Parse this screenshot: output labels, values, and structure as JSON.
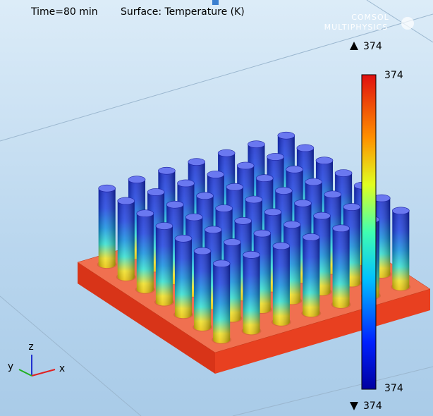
{
  "header": {
    "time": "Time=80 min",
    "expression": "Surface: Temperature (K)"
  },
  "logo": {
    "line1": "COMSOL",
    "line2": "MULTIPHYSICS"
  },
  "colorbar": {
    "max_arrow_label": "374",
    "top_label": "374",
    "bottom_label": "374",
    "min_arrow_label": "374"
  },
  "axes": {
    "z": "z",
    "y": "y",
    "x": "x"
  }
}
